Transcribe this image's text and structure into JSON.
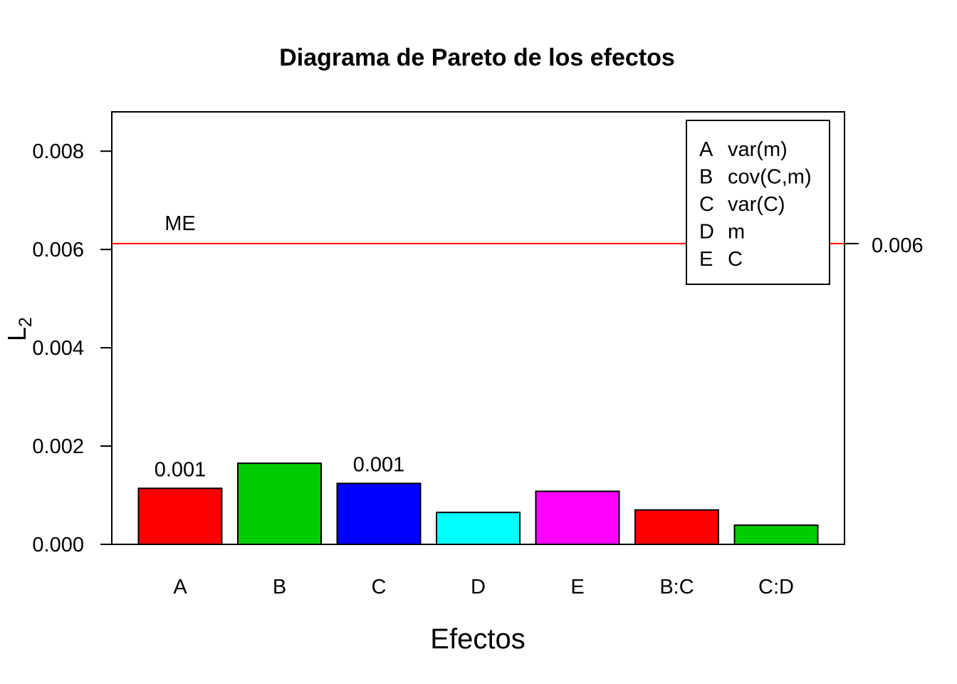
{
  "chart_data": {
    "type": "bar",
    "title": "Diagrama de Pareto de los efectos",
    "xlabel": "Efectos",
    "ylabel": "L",
    "ylabel_sub": "2",
    "categories": [
      "A",
      "B",
      "C",
      "D",
      "E",
      "B:C",
      "C:D"
    ],
    "values": [
      0.00114,
      0.00165,
      0.00124,
      0.00065,
      0.00108,
      0.0007,
      0.00039
    ],
    "bar_colors": [
      "#ff0000",
      "#00cd00",
      "#0000ff",
      "#00ffff",
      "#ff00ff",
      "#ff0000",
      "#00cd00"
    ],
    "bar_labels": [
      "0.001",
      "",
      "0.001",
      "",
      "",
      "",
      ""
    ],
    "ylim": [
      0,
      0.0088
    ],
    "yticks": [
      0,
      0.002,
      0.004,
      0.006,
      0.008
    ],
    "ytick_labels": [
      "0.000",
      "0.002",
      "0.004",
      "0.006",
      "0.008"
    ],
    "reference_line": {
      "value": 0.00612,
      "label": "ME",
      "right_label": "0.006",
      "color": "#ff0000"
    },
    "legend": {
      "placement": "top-right",
      "entries": [
        {
          "key": "A",
          "text": "var(m)"
        },
        {
          "key": "B",
          "text": "cov(C,m)"
        },
        {
          "key": "C",
          "text": "var(C)"
        },
        {
          "key": "D",
          "text": "m"
        },
        {
          "key": "E",
          "text": "C"
        }
      ]
    },
    "grid": false
  }
}
